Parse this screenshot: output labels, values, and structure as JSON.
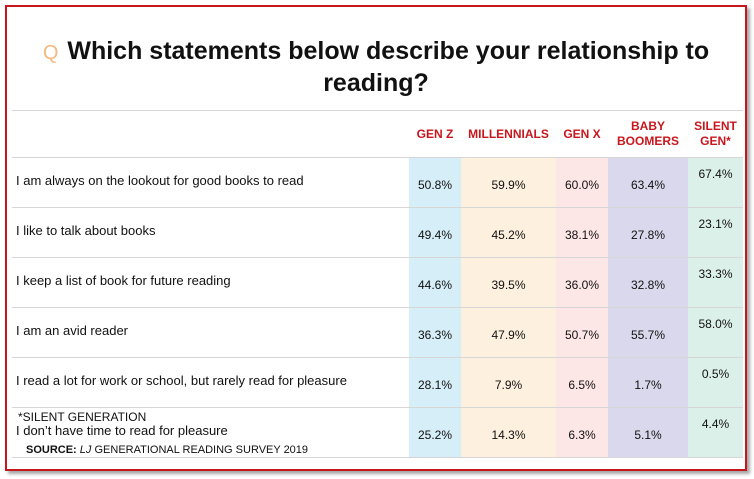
{
  "title": {
    "icon": "Q",
    "line1": "Which statements below describe your relationship to",
    "line2": "reading?"
  },
  "footnote": "*SILENT GENERATION",
  "source": {
    "label": "SOURCE:",
    "magazine": "LJ",
    "rest": "GENERATIONAL READING SURVEY 2019"
  },
  "colors": {
    "accent": "#c8161d",
    "gen_z": "#d6eef8",
    "millennials": "#fdf0de",
    "gen_x": "#fde6e6",
    "baby_boomers": "#dad8ec",
    "silent_gen": "#dcf0ea"
  },
  "chart_data": {
    "type": "table",
    "title": "Which statements below describe your relationship to reading?",
    "columns": [
      {
        "label": "GEN Z"
      },
      {
        "label": "MILLENNIALS"
      },
      {
        "label": "GEN X"
      },
      {
        "label": "BABY BOOMERS",
        "line1": "BABY",
        "line2": "BOOMERS"
      },
      {
        "label": "SILENT GEN*",
        "line1": "SILENT",
        "line2": "GEN*"
      }
    ],
    "rows": [
      {
        "statement": "I am always on the lookout for good books to read",
        "values": [
          "50.8%",
          "59.9%",
          "60.0%",
          "63.4%",
          "67.4%"
        ]
      },
      {
        "statement": "I like to talk about books",
        "values": [
          "49.4%",
          "45.2%",
          "38.1%",
          "27.8%",
          "23.1%"
        ]
      },
      {
        "statement": "I keep a list of book for future reading",
        "values": [
          "44.6%",
          "39.5%",
          "36.0%",
          "32.8%",
          "33.3%"
        ]
      },
      {
        "statement": "I am an avid reader",
        "values": [
          "36.3%",
          "47.9%",
          "50.7%",
          "55.7%",
          "58.0%"
        ]
      },
      {
        "statement": "I read a lot for work or school, but rarely read for pleasure",
        "values": [
          "28.1%",
          "7.9%",
          "6.5%",
          "1.7%",
          "0.5%"
        ]
      },
      {
        "statement": "I don’t have time to read for pleasure",
        "values": [
          "25.2%",
          "14.3%",
          "6.3%",
          "5.1%",
          "4.4%"
        ]
      }
    ]
  }
}
